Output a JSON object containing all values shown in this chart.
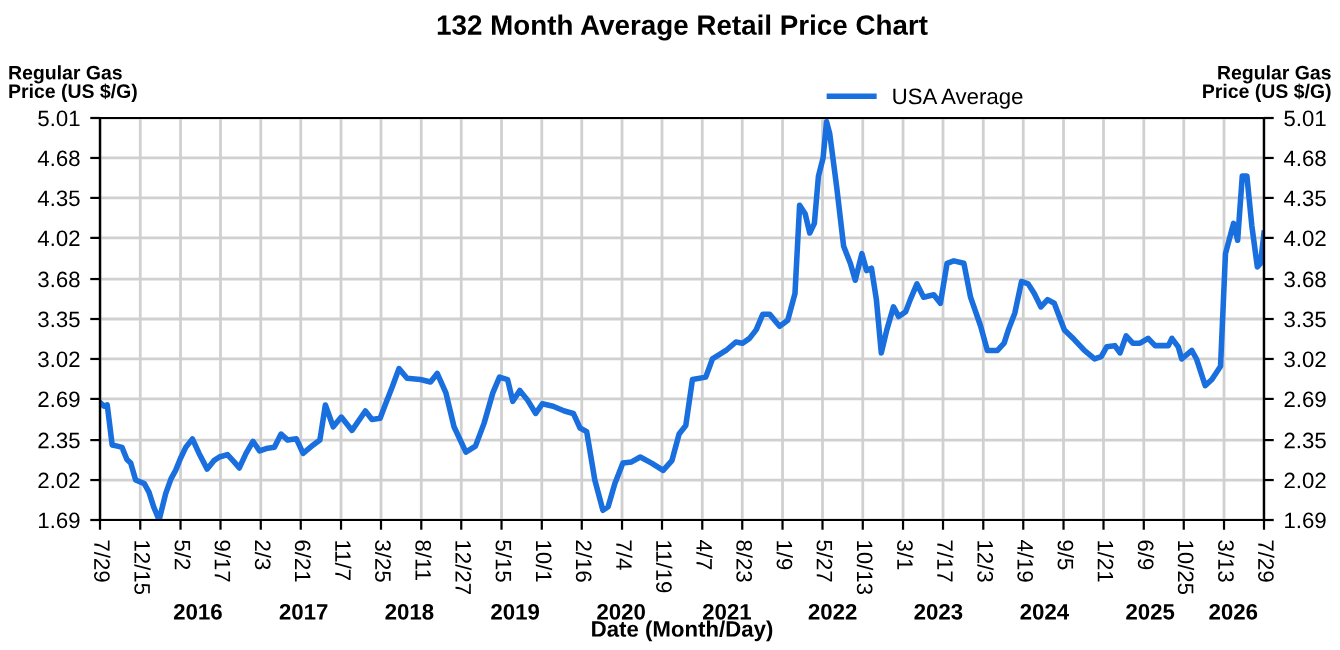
{
  "chart_data": {
    "type": "line",
    "title": "132 Month Average Retail Price Chart",
    "xlabel": "Date (Month/Day)",
    "ylabel": "Regular Gas\nPrice (US $/G)",
    "y2label": "Regular Gas\nPrice (US $/G)",
    "series": [
      {
        "name": "USA Average",
        "color": "#1a6fdf",
        "x": [
          "2015-07-29",
          "2015-08-12",
          "2015-08-23",
          "2015-09-09",
          "2015-09-27",
          "2015-10-13",
          "2015-10-30",
          "2015-11-12",
          "2015-11-29",
          "2015-12-29",
          "2016-01-14",
          "2016-01-30",
          "2016-02-18",
          "2016-03-12",
          "2016-03-30",
          "2016-04-15",
          "2016-05-02",
          "2016-05-20",
          "2016-06-12",
          "2016-07-05",
          "2016-08-02",
          "2016-08-25",
          "2016-09-13",
          "2016-10-11",
          "2016-11-03",
          "2016-11-21",
          "2016-12-14",
          "2017-01-07",
          "2017-01-30",
          "2017-02-22",
          "2017-03-22",
          "2017-04-14",
          "2017-05-07",
          "2017-06-06",
          "2017-06-29",
          "2017-08-03",
          "2017-08-26",
          "2017-09-14",
          "2017-10-11",
          "2017-11-08",
          "2017-12-15",
          "2018-01-30",
          "2018-02-22",
          "2018-03-22",
          "2018-04-10",
          "2018-05-03",
          "2018-05-26",
          "2018-06-23",
          "2018-08-08",
          "2018-09-12",
          "2018-10-05",
          "2018-11-04",
          "2018-12-02",
          "2019-01-12",
          "2019-02-14",
          "2019-03-16",
          "2019-04-15",
          "2019-05-08",
          "2019-06-05",
          "2019-06-23",
          "2019-07-17",
          "2019-08-13",
          "2019-09-10",
          "2019-10-03",
          "2019-11-09",
          "2019-12-18",
          "2020-01-18",
          "2020-02-10",
          "2020-03-04",
          "2020-04-01",
          "2020-04-29",
          "2020-05-17",
          "2020-06-09",
          "2020-07-07",
          "2020-08-06",
          "2020-09-05",
          "2020-10-14",
          "2020-11-23",
          "2020-12-23",
          "2021-01-17",
          "2021-02-09",
          "2021-03-04",
          "2021-04-19",
          "2021-05-12",
          "2021-06-28",
          "2021-08-01",
          "2021-08-24",
          "2021-09-17",
          "2021-10-10",
          "2021-11-02",
          "2021-11-25",
          "2021-12-30",
          "2022-01-27",
          "2022-02-21",
          "2022-03-09",
          "2022-03-28",
          "2022-04-13",
          "2022-04-29",
          "2022-05-13",
          "2022-05-29",
          "2022-06-10",
          "2022-06-21",
          "2022-07-15",
          "2022-08-08",
          "2022-08-31",
          "2022-09-17",
          "2022-10-10",
          "2022-10-26",
          "2022-11-12",
          "2022-11-29",
          "2022-12-16",
          "2023-01-04",
          "2023-01-27",
          "2023-02-14",
          "2023-03-10",
          "2023-03-26",
          "2023-04-18",
          "2023-05-11",
          "2023-06-15",
          "2023-07-08",
          "2023-07-31",
          "2023-08-23",
          "2023-09-27",
          "2023-10-20",
          "2023-11-24",
          "2023-12-17",
          "2024-01-21",
          "2024-02-13",
          "2024-02-29",
          "2024-03-21",
          "2024-04-13",
          "2024-05-06",
          "2024-05-27",
          "2024-06-19",
          "2024-07-12",
          "2024-08-04",
          "2024-09-08",
          "2024-10-12",
          "2024-11-16",
          "2024-12-21",
          "2025-01-13",
          "2025-02-01",
          "2025-03-01",
          "2025-03-19",
          "2025-04-09",
          "2025-05-02",
          "2025-05-27",
          "2025-06-24",
          "2025-07-18",
          "2025-09-02",
          "2025-09-14",
          "2025-10-06",
          "2025-10-18",
          "2025-11-22",
          "2025-12-08",
          "2026-01-07",
          "2026-01-30",
          "2026-03-01",
          "2026-03-18",
          "2026-04-15",
          "2026-04-29",
          "2026-05-15",
          "2026-05-31",
          "2026-06-17",
          "2026-07-06",
          "2026-07-17",
          "2026-07-29"
        ],
        "values": [
          2.66,
          2.63,
          2.64,
          2.31,
          2.3,
          2.29,
          2.19,
          2.16,
          2.02,
          1.99,
          1.92,
          1.8,
          1.69,
          1.91,
          2.03,
          2.1,
          2.2,
          2.29,
          2.36,
          2.24,
          2.11,
          2.18,
          2.21,
          2.23,
          2.17,
          2.12,
          2.24,
          2.34,
          2.26,
          2.28,
          2.29,
          2.4,
          2.35,
          2.36,
          2.24,
          2.31,
          2.35,
          2.64,
          2.46,
          2.54,
          2.43,
          2.59,
          2.52,
          2.53,
          2.65,
          2.79,
          2.94,
          2.86,
          2.85,
          2.83,
          2.9,
          2.74,
          2.46,
          2.25,
          2.3,
          2.49,
          2.74,
          2.87,
          2.85,
          2.67,
          2.76,
          2.68,
          2.57,
          2.65,
          2.63,
          2.59,
          2.57,
          2.45,
          2.42,
          2.02,
          1.77,
          1.8,
          1.99,
          2.16,
          2.17,
          2.21,
          2.16,
          2.1,
          2.18,
          2.4,
          2.47,
          2.85,
          2.87,
          3.02,
          3.09,
          3.16,
          3.15,
          3.19,
          3.26,
          3.39,
          3.39,
          3.29,
          3.34,
          3.56,
          4.29,
          4.22,
          4.06,
          4.14,
          4.53,
          4.68,
          4.98,
          4.88,
          4.44,
          3.95,
          3.81,
          3.67,
          3.89,
          3.75,
          3.77,
          3.51,
          3.07,
          3.26,
          3.45,
          3.37,
          3.41,
          3.51,
          3.64,
          3.53,
          3.55,
          3.48,
          3.81,
          3.83,
          3.81,
          3.53,
          3.29,
          3.09,
          3.09,
          3.15,
          3.27,
          3.4,
          3.66,
          3.64,
          3.56,
          3.45,
          3.51,
          3.48,
          3.26,
          3.18,
          3.09,
          3.02,
          3.04,
          3.12,
          3.13,
          3.07,
          3.21,
          3.15,
          3.15,
          3.19,
          3.13,
          3.13,
          3.19,
          3.12,
          3.02,
          3.09,
          3.02,
          2.8,
          2.85,
          2.96,
          3.89,
          4.14,
          4.0,
          4.53,
          4.53,
          4.12,
          3.78,
          3.81,
          4.06
        ]
      }
    ],
    "xlim": [
      "2015-07-29",
      "2026-07-29"
    ],
    "xticks": [
      {
        "value": "2015-07-29",
        "label": "7/29"
      },
      {
        "value": "2015-12-15",
        "label": "12/15"
      },
      {
        "value": "2016-05-02",
        "label": "5/2"
      },
      {
        "value": "2016-09-17",
        "label": "9/17"
      },
      {
        "value": "2017-02-03",
        "label": "2/3"
      },
      {
        "value": "2017-06-21",
        "label": "6/21"
      },
      {
        "value": "2017-11-07",
        "label": "11/7"
      },
      {
        "value": "2018-03-25",
        "label": "3/25"
      },
      {
        "value": "2018-08-11",
        "label": "8/11"
      },
      {
        "value": "2018-12-27",
        "label": "12/27"
      },
      {
        "value": "2019-05-15",
        "label": "5/15"
      },
      {
        "value": "2019-10-01",
        "label": "10/1"
      },
      {
        "value": "2020-02-16",
        "label": "2/16"
      },
      {
        "value": "2020-07-04",
        "label": "7/4"
      },
      {
        "value": "2020-11-19",
        "label": "11/19"
      },
      {
        "value": "2021-04-07",
        "label": "4/7"
      },
      {
        "value": "2021-08-23",
        "label": "8/23"
      },
      {
        "value": "2022-01-09",
        "label": "1/9"
      },
      {
        "value": "2022-05-27",
        "label": "5/27"
      },
      {
        "value": "2022-10-13",
        "label": "10/13"
      },
      {
        "value": "2023-03-01",
        "label": "3/1"
      },
      {
        "value": "2023-07-17",
        "label": "7/17"
      },
      {
        "value": "2023-12-03",
        "label": "12/3"
      },
      {
        "value": "2024-04-19",
        "label": "4/19"
      },
      {
        "value": "2024-09-05",
        "label": "9/5"
      },
      {
        "value": "2025-01-21",
        "label": "1/21"
      },
      {
        "value": "2025-06-09",
        "label": "6/9"
      },
      {
        "value": "2025-10-25",
        "label": "10/25"
      },
      {
        "value": "2026-03-13",
        "label": "3/13"
      },
      {
        "value": "2026-07-29",
        "label": "7/29"
      }
    ],
    "x2lim": [
      "2015-07-29",
      "2026-07-29"
    ],
    "x2ticks": [
      {
        "value": "2016-07-01",
        "label": "2016"
      },
      {
        "value": "2017-07-01",
        "label": "2017"
      },
      {
        "value": "2018-07-01",
        "label": "2018"
      },
      {
        "value": "2019-07-01",
        "label": "2019"
      },
      {
        "value": "2020-07-01",
        "label": "2020"
      },
      {
        "value": "2021-07-01",
        "label": "2021"
      },
      {
        "value": "2022-07-01",
        "label": "2022"
      },
      {
        "value": "2023-07-01",
        "label": "2023"
      },
      {
        "value": "2024-07-01",
        "label": "2024"
      },
      {
        "value": "2025-07-01",
        "label": "2025"
      },
      {
        "value": "2026-04-14",
        "label": "2026"
      }
    ],
    "ylim": [
      1.69,
      5.01
    ],
    "yticks": [
      1.69,
      2.02,
      2.35,
      2.69,
      3.02,
      3.35,
      3.68,
      4.02,
      4.35,
      4.68,
      5.01
    ],
    "y2lim": [
      1.69,
      5.01
    ],
    "y2ticks": [
      1.69,
      2.02,
      2.35,
      2.69,
      3.02,
      3.35,
      3.68,
      4.02,
      4.35,
      4.68,
      5.01
    ],
    "grid": true,
    "legend": "top",
    "marker": "none",
    "line_style": "solid"
  }
}
